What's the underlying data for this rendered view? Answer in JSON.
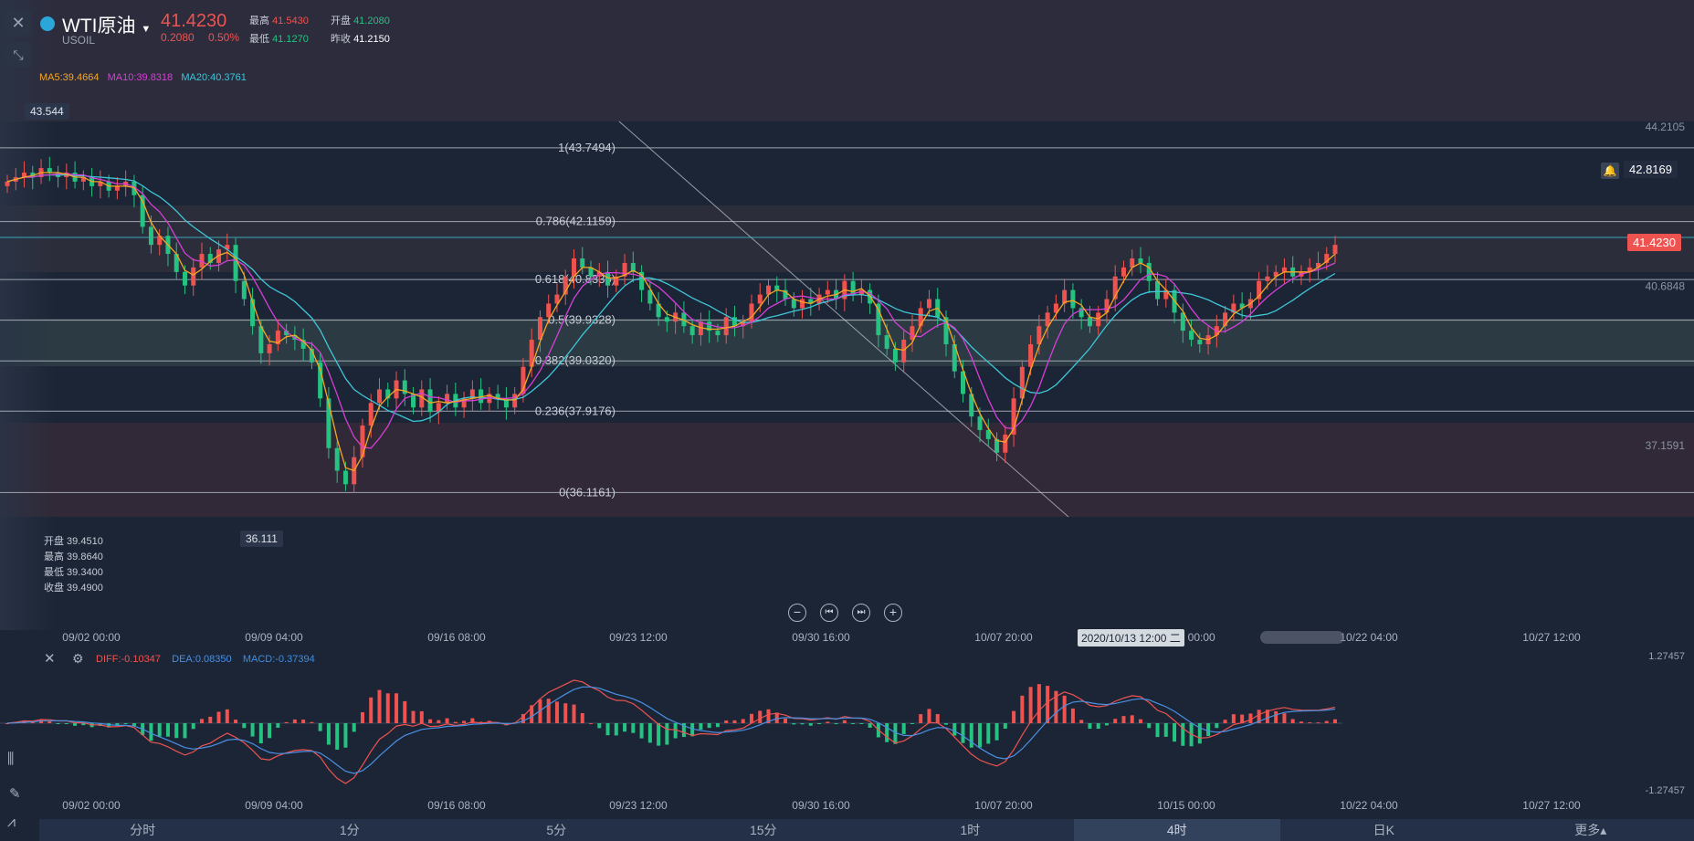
{
  "header": {
    "title": "WTI原油",
    "symbol": "USOIL",
    "price": "41.4230",
    "change": "0.2080",
    "change_pct": "0.50%",
    "high_label": "最高",
    "high": "41.5430",
    "open_label": "开盘",
    "open": "41.2080",
    "low_label": "最低",
    "low": "41.1270",
    "prev_label": "昨收",
    "prev": "41.2150"
  },
  "ma_legend": {
    "ma5": "MA5:39.4664",
    "ma10": "MA10:39.8318",
    "ma20": "MA20:40.3761"
  },
  "ohlc_panel": {
    "open": "开盘 39.4510",
    "high": "最高 39.8640",
    "low": "最低 39.3400",
    "close": "收盘 39.4900"
  },
  "macd_legend": {
    "diff": "DIFF:-0.10347",
    "dea": "DEA:0.08350",
    "macd": "MACD:-0.37394"
  },
  "markers": {
    "high": "43.544",
    "low": "36.111",
    "alert_price": "42.8169",
    "current_price": "41.4230"
  },
  "crosshair_label": "2020/10/13 12:00 二",
  "bottom_tabs": [
    "分时",
    "1分",
    "5分",
    "15分",
    "1时",
    "4时",
    "日K",
    "更多▴"
  ],
  "active_tab": "4时",
  "colors": {
    "up": "#ef5350",
    "down": "#26c281",
    "ma5": "#f5a623",
    "ma10": "#d63fd6",
    "ma20": "#3ec6d8",
    "diff": "#ef5350",
    "dea": "#4a90e2"
  },
  "chart_data": {
    "type": "candlestick",
    "timeframe": "4时",
    "x_ticks": [
      "09/02 00:00",
      "09/09 04:00",
      "09/16 08:00",
      "09/23 12:00",
      "09/30 16:00",
      "10/07 20:00",
      "10/15 00:00",
      "10/22 04:00",
      "10/27 12:00"
    ],
    "y_ticks": [
      "44.2105",
      "40.6848",
      "37.1591"
    ],
    "ylim": [
      35.7,
      45.0
    ],
    "fibonacci": [
      {
        "label": "1(43.7494)",
        "value": 43.7494
      },
      {
        "label": "0.786(42.1159)",
        "value": 42.1159
      },
      {
        "label": "0.618(40.8335)",
        "value": 40.8335
      },
      {
        "label": "0.5(39.9328)",
        "value": 39.9328
      },
      {
        "label": "0.382(39.0320)",
        "value": 39.032
      },
      {
        "label": "0.236(37.9176)",
        "value": 37.9176
      },
      {
        "label": "0(36.1161)",
        "value": 36.1161
      }
    ],
    "close_series": [
      43.0,
      43.1,
      43.2,
      43.1,
      43.3,
      43.2,
      43.1,
      43.2,
      43.0,
      43.1,
      42.9,
      43.0,
      42.8,
      42.9,
      43.0,
      42.7,
      42.0,
      41.6,
      41.8,
      41.4,
      41.0,
      40.7,
      41.1,
      41.4,
      41.2,
      41.5,
      41.6,
      40.8,
      40.4,
      39.8,
      39.2,
      39.4,
      39.7,
      39.6,
      39.5,
      39.3,
      39.0,
      38.2,
      37.1,
      36.6,
      36.3,
      36.9,
      37.6,
      38.1,
      38.4,
      38.2,
      38.6,
      38.3,
      38.0,
      38.4,
      37.9,
      38.1,
      38.3,
      38.0,
      38.2,
      38.4,
      38.1,
      38.3,
      38.2,
      38.0,
      38.3,
      38.9,
      39.5,
      40.0,
      40.3,
      40.5,
      40.9,
      41.3,
      41.1,
      40.9,
      41.0,
      40.7,
      40.9,
      41.2,
      41.0,
      40.6,
      40.3,
      40.0,
      39.9,
      40.1,
      39.8,
      39.6,
      39.9,
      39.7,
      39.6,
      40.0,
      39.8,
      39.9,
      40.3,
      40.5,
      40.7,
      40.6,
      40.4,
      40.2,
      40.4,
      40.3,
      40.5,
      40.6,
      40.4,
      40.8,
      40.5,
      40.6,
      40.3,
      39.6,
      39.3,
      39.0,
      39.5,
      39.8,
      40.2,
      40.4,
      40.0,
      39.4,
      38.8,
      38.3,
      37.8,
      37.5,
      37.3,
      37.0,
      37.4,
      38.2,
      38.9,
      39.4,
      39.8,
      40.1,
      40.3,
      40.6,
      40.2,
      40.0,
      39.8,
      40.1,
      40.4,
      40.9,
      41.1,
      41.3,
      41.2,
      40.8,
      40.4,
      40.6,
      40.1,
      39.7,
      39.5,
      39.4,
      39.6,
      39.8,
      40.1,
      40.3,
      40.2,
      40.4,
      40.8,
      40.9,
      41.0,
      41.1,
      40.9,
      41.0,
      41.1,
      41.2,
      41.4,
      41.6
    ]
  }
}
